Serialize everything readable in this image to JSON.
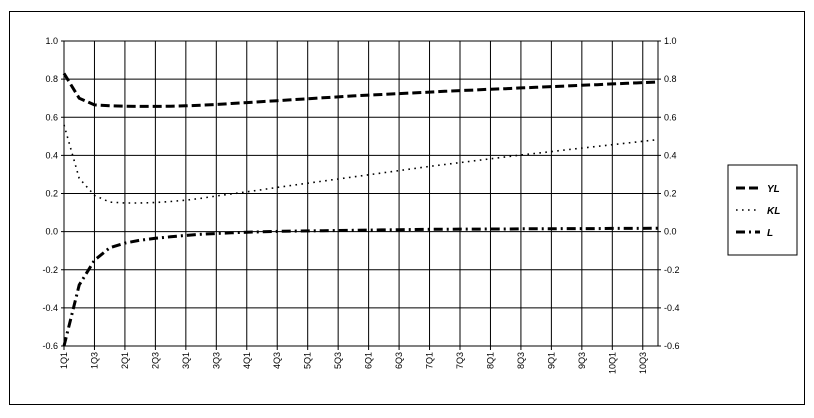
{
  "chart_data": {
    "type": "line",
    "title": "",
    "xlabel": "",
    "ylabel": "",
    "ylim": [
      -0.6,
      1.0
    ],
    "y_ticks": [
      "1.0",
      "0.8",
      "0.6",
      "0.4",
      "0.2",
      "0.0",
      "-0.2",
      "-0.4",
      "-0.6"
    ],
    "y2_ticks": [
      "1.0",
      "0.8",
      "0.6",
      "0.4",
      "0.2",
      "0.0",
      "-0.2",
      "-0.4",
      "-0.6"
    ],
    "x_tick_labels": [
      "1Q1",
      "1Q3",
      "2Q1",
      "2Q3",
      "3Q1",
      "3Q3",
      "4Q1",
      "4Q3",
      "5Q1",
      "5Q3",
      "6Q1",
      "6Q3",
      "7Q1",
      "7Q3",
      "8Q1",
      "8Q3",
      "9Q1",
      "9Q3",
      "10Q1",
      "10Q3"
    ],
    "x_points_per_tick": 2,
    "grid": true,
    "legend_position": "right",
    "series": [
      {
        "name": "YL",
        "style": "dashed-thick",
        "x": [
          1,
          2,
          3,
          4,
          5,
          6,
          7,
          8,
          9,
          10,
          11,
          12,
          13,
          14,
          15,
          16,
          17,
          18,
          19,
          20,
          21,
          22,
          23,
          24,
          25,
          26,
          27,
          28,
          29,
          30,
          31,
          32,
          33,
          34,
          35,
          36,
          37,
          38,
          39,
          40
        ],
        "values": [
          0.83,
          0.7,
          0.665,
          0.66,
          0.658,
          0.657,
          0.657,
          0.658,
          0.66,
          0.663,
          0.667,
          0.672,
          0.677,
          0.682,
          0.687,
          0.692,
          0.697,
          0.702,
          0.707,
          0.712,
          0.716,
          0.72,
          0.724,
          0.728,
          0.732,
          0.736,
          0.74,
          0.743,
          0.747,
          0.75,
          0.754,
          0.757,
          0.761,
          0.764,
          0.768,
          0.771,
          0.775,
          0.778,
          0.782,
          0.785
        ]
      },
      {
        "name": "KL",
        "style": "dotted",
        "x": [
          1,
          2,
          3,
          4,
          5,
          6,
          7,
          8,
          9,
          10,
          11,
          12,
          13,
          14,
          15,
          16,
          17,
          18,
          19,
          20,
          21,
          22,
          23,
          24,
          25,
          26,
          27,
          28,
          29,
          30,
          31,
          32,
          33,
          34,
          35,
          36,
          37,
          38,
          39,
          40
        ],
        "values": [
          0.56,
          0.28,
          0.19,
          0.155,
          0.15,
          0.15,
          0.153,
          0.158,
          0.165,
          0.175,
          0.187,
          0.198,
          0.209,
          0.22,
          0.232,
          0.243,
          0.254,
          0.265,
          0.276,
          0.287,
          0.298,
          0.309,
          0.32,
          0.331,
          0.342,
          0.352,
          0.362,
          0.372,
          0.382,
          0.392,
          0.402,
          0.411,
          0.42,
          0.429,
          0.438,
          0.447,
          0.456,
          0.465,
          0.474,
          0.483
        ]
      },
      {
        "name": "L",
        "style": "dash-dot",
        "x": [
          1,
          2,
          3,
          4,
          5,
          6,
          7,
          8,
          9,
          10,
          11,
          12,
          13,
          14,
          15,
          16,
          17,
          18,
          19,
          20,
          21,
          22,
          23,
          24,
          25,
          26,
          27,
          28,
          29,
          30,
          31,
          32,
          33,
          34,
          35,
          36,
          37,
          38,
          39,
          40
        ],
        "values": [
          -0.6,
          -0.28,
          -0.15,
          -0.085,
          -0.06,
          -0.045,
          -0.035,
          -0.027,
          -0.02,
          -0.014,
          -0.01,
          -0.006,
          -0.003,
          -0.001,
          0.001,
          0.003,
          0.004,
          0.005,
          0.006,
          0.007,
          0.008,
          0.009,
          0.01,
          0.011,
          0.012,
          0.012,
          0.013,
          0.013,
          0.014,
          0.014,
          0.015,
          0.015,
          0.015,
          0.016,
          0.016,
          0.016,
          0.017,
          0.017,
          0.017,
          0.018
        ]
      }
    ]
  }
}
